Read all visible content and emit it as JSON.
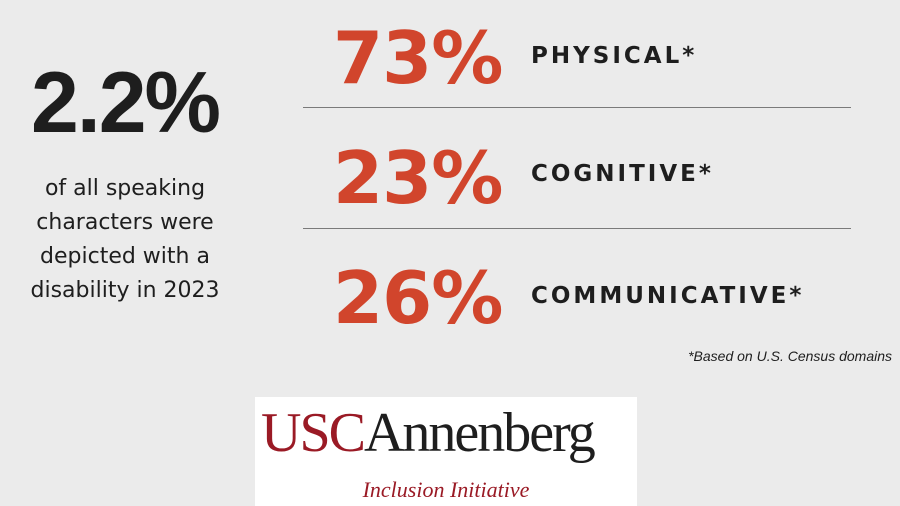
{
  "headline": {
    "value": "2.2%",
    "description_lines": [
      "of all speaking",
      "characters were",
      "depicted with a",
      "disability in 2023"
    ]
  },
  "stats": [
    {
      "value": "73%",
      "label": "PHYSICAL*"
    },
    {
      "value": "23%",
      "label": "COGNITIVE*"
    },
    {
      "value": "26%",
      "label": "COMMUNICATIVE*"
    }
  ],
  "footnote": "*Based on U.S. Census domains",
  "logo": {
    "part1": "USC",
    "part2": "Annenberg",
    "subtitle": "Inclusion Initiative"
  },
  "colors": {
    "background": "#ebebeb",
    "accent": "#d1452c",
    "text": "#1e1e1e",
    "brand": "#9a1a25"
  }
}
